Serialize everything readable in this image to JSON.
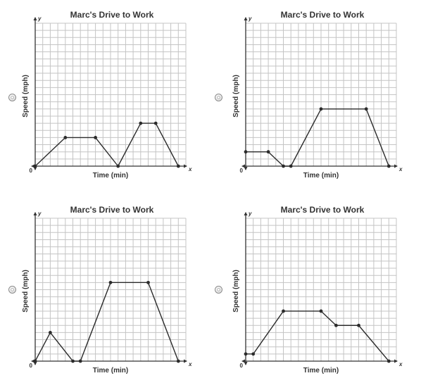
{
  "question": {
    "options": [
      {
        "id": "A",
        "selected": false
      },
      {
        "id": "B",
        "selected": false
      },
      {
        "id": "C",
        "selected": false
      },
      {
        "id": "D",
        "selected": false
      }
    ]
  },
  "chart_data": [
    {
      "type": "line",
      "title": "Marc's Drive to Work",
      "xlabel": "Time (min)",
      "ylabel": "Speed (mph)",
      "x_var": "x",
      "y_var": "y",
      "origin_label": "0",
      "xlim": [
        0,
        20
      ],
      "ylim": [
        0,
        20
      ],
      "grid": true,
      "series": [
        {
          "x": [
            0,
            4,
            8,
            11,
            14,
            16,
            19
          ],
          "y": [
            0,
            4,
            4,
            0,
            6,
            6,
            0
          ]
        }
      ]
    },
    {
      "type": "line",
      "title": "Marc's Drive to Work",
      "xlabel": "Time (min)",
      "ylabel": "Speed (mph)",
      "x_var": "x",
      "y_var": "y",
      "origin_label": "0",
      "xlim": [
        0,
        20
      ],
      "ylim": [
        0,
        20
      ],
      "grid": true,
      "series": [
        {
          "x": [
            0,
            3,
            5,
            6,
            10,
            16,
            19
          ],
          "y": [
            2,
            2,
            0,
            0,
            8,
            8,
            0
          ]
        }
      ]
    },
    {
      "type": "line",
      "title": "Marc's Drive to Work",
      "xlabel": "Time (min)",
      "ylabel": "Speed (mph)",
      "x_var": "x",
      "y_var": "y",
      "origin_label": "0",
      "xlim": [
        0,
        20
      ],
      "ylim": [
        0,
        20
      ],
      "grid": true,
      "series": [
        {
          "x": [
            0,
            2,
            5,
            6,
            10,
            15,
            19
          ],
          "y": [
            0,
            4,
            0,
            0,
            11,
            11,
            0
          ]
        }
      ]
    },
    {
      "type": "line",
      "title": "Marc's Drive to Work",
      "xlabel": "Time (min)",
      "ylabel": "Speed (mph)",
      "x_var": "x",
      "y_var": "y",
      "origin_label": "0",
      "xlim": [
        0,
        20
      ],
      "ylim": [
        0,
        20
      ],
      "grid": true,
      "series": [
        {
          "x": [
            0,
            1,
            5,
            10,
            12,
            15,
            19
          ],
          "y": [
            1,
            1,
            7,
            7,
            5,
            5,
            0
          ]
        }
      ]
    }
  ]
}
